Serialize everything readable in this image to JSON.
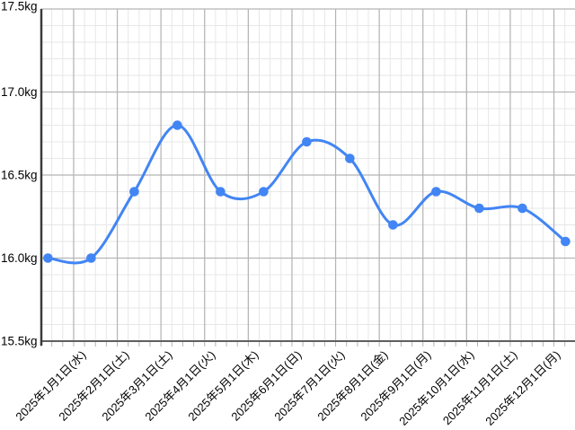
{
  "chart_data": {
    "type": "line",
    "title": "",
    "legend": "none",
    "grid": "major+minor",
    "smooth": true,
    "point_markers": true,
    "unit": "kg",
    "ylim": [
      15.5,
      17.5
    ],
    "y_major_step": 0.5,
    "y_minor_step": 0.1,
    "y_ticks": [
      {
        "label": "17.5kg",
        "value": 17.5
      },
      {
        "label": "17.0kg",
        "value": 17.0
      },
      {
        "label": "16.5kg",
        "value": 16.5
      },
      {
        "label": "16.0kg",
        "value": 16.0
      },
      {
        "label": "15.5kg",
        "value": 15.5
      }
    ],
    "series": [
      {
        "color": "#4285f4",
        "points": [
          {
            "x_label": "",
            "value": 16.0
          },
          {
            "x_label": "2025年1月1日(水)",
            "value": 16.0
          },
          {
            "x_label": "2025年2月1日(土)",
            "value": 16.4
          },
          {
            "x_label": "2025年3月1日(土)",
            "value": 16.8
          },
          {
            "x_label": "2025年4月1日(火)",
            "value": 16.4
          },
          {
            "x_label": "2025年5月1日(木)",
            "value": 16.4
          },
          {
            "x_label": "2025年6月1日(日)",
            "value": 16.7
          },
          {
            "x_label": "2025年7月1日(火)",
            "value": 16.6
          },
          {
            "x_label": "2025年8月1日(金)",
            "value": 16.2
          },
          {
            "x_label": "2025年9月1日(月)",
            "value": 16.4
          },
          {
            "x_label": "2025年10月1日(水)",
            "value": 16.3
          },
          {
            "x_label": "2025年11月1日(土)",
            "value": 16.3
          },
          {
            "x_label": "2025年12月1日(月)",
            "value": 16.1
          }
        ]
      }
    ],
    "colors": {
      "line": "#4285f4",
      "marker": "#4285f4",
      "grid_major": "#b5b5b5",
      "grid_minor": "#e7e7e7",
      "y_axis": "#3a3a3a",
      "x_axis": "#5f5f5f",
      "tick": "#b5b5b5",
      "label_text": "#000000",
      "background": "#ffffff"
    }
  }
}
